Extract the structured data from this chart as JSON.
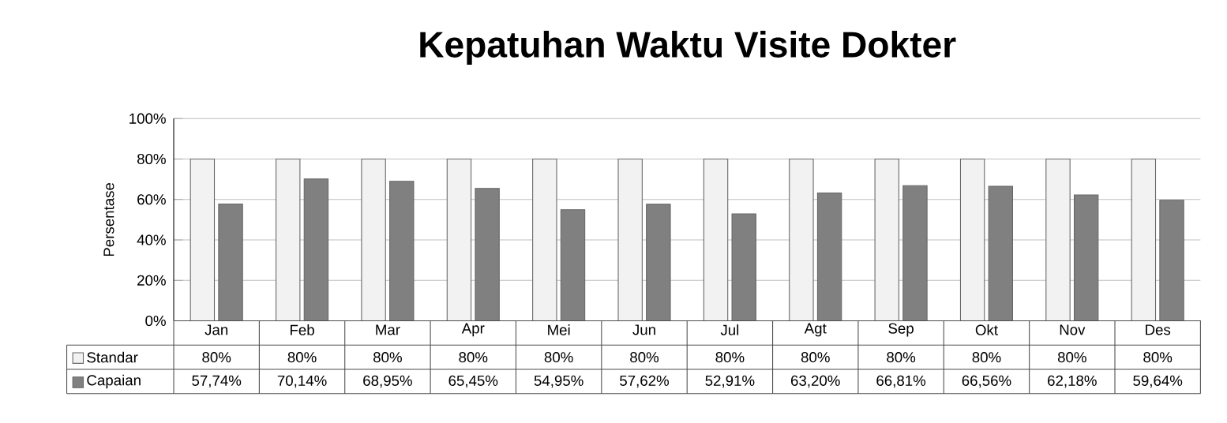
{
  "chart_data": {
    "type": "bar",
    "title": "Kepatuhan Waktu Visite Dokter",
    "ylabel": "Persentase",
    "categories": [
      "Jan",
      "Feb",
      "Mar",
      "Apr",
      "Mei",
      "Jun",
      "Jul",
      "Agt",
      "Sep",
      "Okt",
      "Nov",
      "Des"
    ],
    "series": [
      {
        "name": "Standar",
        "color": "#f2f2f2",
        "values": [
          80,
          80,
          80,
          80,
          80,
          80,
          80,
          80,
          80,
          80,
          80,
          80
        ],
        "value_labels": [
          "80%",
          "80%",
          "80%",
          "80%",
          "80%",
          "80%",
          "80%",
          "80%",
          "80%",
          "80%",
          "80%",
          "80%"
        ]
      },
      {
        "name": "Capaian",
        "color": "#808080",
        "values": [
          57.74,
          70.14,
          68.95,
          65.45,
          54.95,
          57.62,
          52.91,
          63.2,
          66.81,
          66.56,
          62.18,
          59.64
        ],
        "value_labels": [
          "57,74%",
          "70,14%",
          "68,95%",
          "65,45%",
          "54,95%",
          "57,62%",
          "52,91%",
          "63,20%",
          "66,81%",
          "66,56%",
          "62,18%",
          "59,64%"
        ]
      }
    ],
    "ylim": [
      0,
      100
    ],
    "yticks": [
      {
        "value": 0,
        "label": "0%"
      },
      {
        "value": 20,
        "label": "20%"
      },
      {
        "value": 40,
        "label": "40%"
      },
      {
        "value": 60,
        "label": "60%"
      },
      {
        "value": 80,
        "label": "80%"
      },
      {
        "value": 100,
        "label": "100%"
      }
    ],
    "grid": "y",
    "legend": "bottom"
  }
}
